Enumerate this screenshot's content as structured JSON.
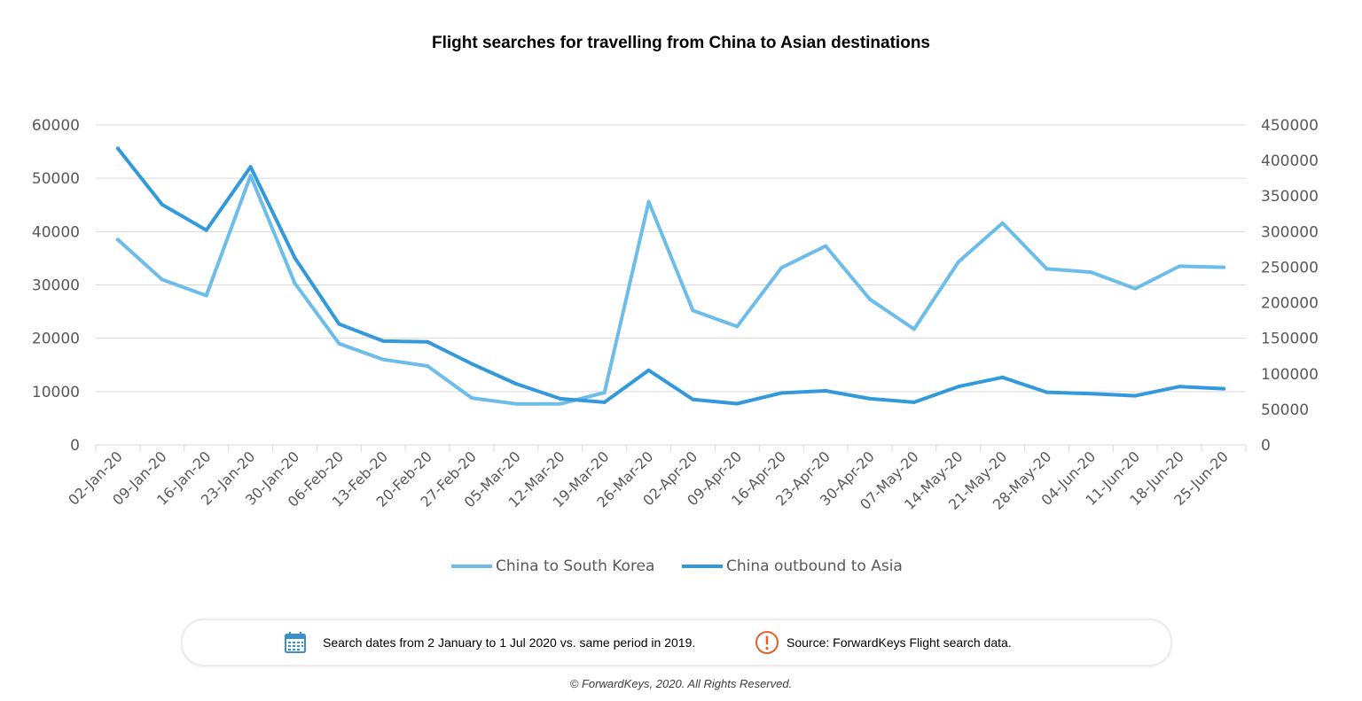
{
  "title": "Flight searches for travelling from China to Asian destinations",
  "chart_data": {
    "type": "line",
    "title": "Flight searches for travelling from China to Asian destinations",
    "categories": [
      "02-Jan-20",
      "09-Jan-20",
      "16-Jan-20",
      "23-Jan-20",
      "30-Jan-20",
      "06-Feb-20",
      "13-Feb-20",
      "20-Feb-20",
      "27-Feb-20",
      "05-Mar-20",
      "12-Mar-20",
      "19-Mar-20",
      "26-Mar-20",
      "02-Apr-20",
      "09-Apr-20",
      "16-Apr-20",
      "23-Apr-20",
      "30-Apr-20",
      "07-May-20",
      "14-May-20",
      "21-May-20",
      "28-May-20",
      "04-Jun-20",
      "11-Jun-20",
      "18-Jun-20",
      "25-Jun-20"
    ],
    "y_left": {
      "ylim": [
        0,
        60000
      ],
      "ticks": [
        "0",
        "10000",
        "20000",
        "30000",
        "40000",
        "50000",
        "60000"
      ]
    },
    "y_right": {
      "ylim": [
        0,
        450000
      ],
      "ticks": [
        "0",
        "50000",
        "100000",
        "150000",
        "200000",
        "250000",
        "300000",
        "350000",
        "400000",
        "450000"
      ]
    },
    "series": [
      {
        "name": "China to South Korea",
        "axis": "left",
        "color": "#6cbde9",
        "values": [
          38500,
          31000,
          28000,
          50500,
          30300,
          19000,
          16000,
          14800,
          8800,
          7700,
          7700,
          9800,
          45600,
          25200,
          22200,
          33200,
          37300,
          27300,
          21700,
          34300,
          41600,
          33000,
          32400,
          29300,
          33500,
          33300
        ]
      },
      {
        "name": "China outbound to Asia",
        "axis": "right",
        "color": "#3399dd",
        "values": [
          417000,
          338000,
          302000,
          391000,
          263000,
          170000,
          146000,
          145000,
          114000,
          86000,
          65000,
          60000,
          105000,
          64000,
          58000,
          73000,
          76000,
          65000,
          60000,
          82000,
          95000,
          74000,
          72000,
          69000,
          82000,
          79000
        ]
      }
    ],
    "grid": true,
    "legend": "bottom"
  },
  "legend": {
    "items": [
      {
        "label": "China to South Korea",
        "color": "#6cbde9"
      },
      {
        "label": "China outbound to Asia",
        "color": "#3399dd"
      }
    ]
  },
  "info": {
    "calendar_icon": "calendar-icon",
    "search_dates": "Search dates from 2 January to 1 Jul 2020 vs. same period in 2019.",
    "alert_icon": "exclamation-circle-icon",
    "source": "Source: ForwardKeys Flight search data.",
    "alert_color": "#e0622a",
    "calendar_color": "#3a8fd0"
  },
  "copyright": "© ForwardKeys, 2020. All Rights Reserved."
}
